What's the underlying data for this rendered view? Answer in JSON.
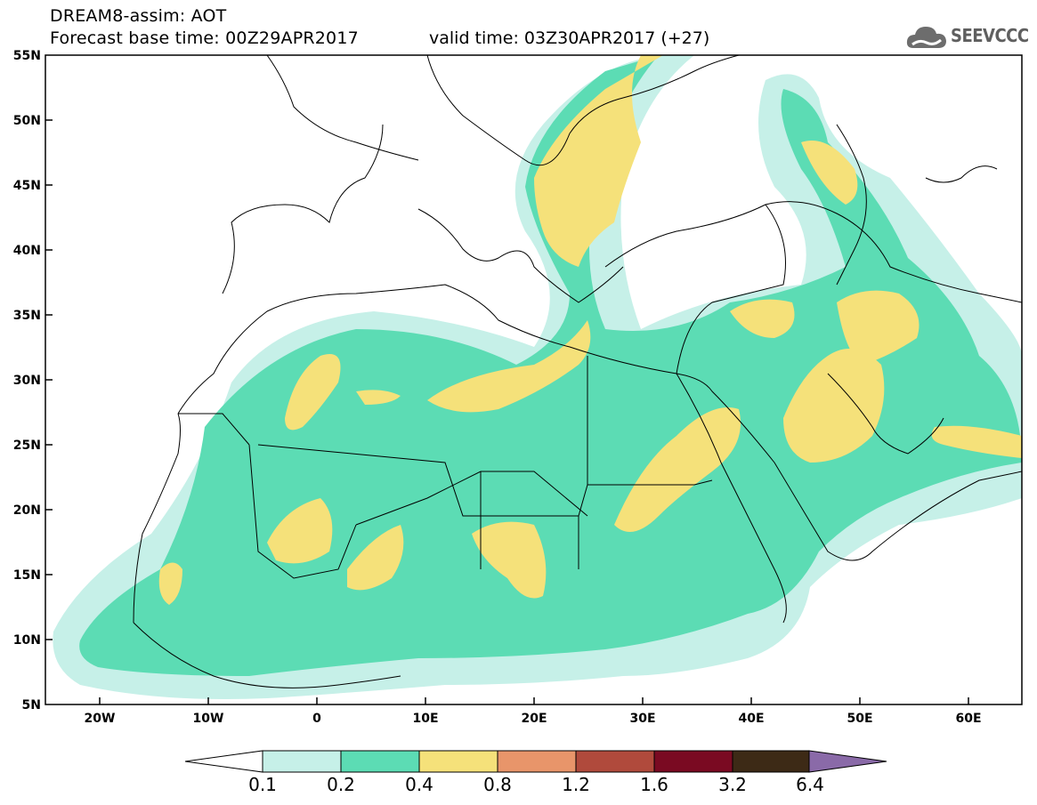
{
  "header": {
    "title": "DREAM8-assim: AOT",
    "base_time": "Forecast base time: 00Z29APR2017",
    "valid_time": "valid time: 03Z30APR2017 (+27)",
    "logo_text": "SEEVCCC",
    "logo_icon": "cloud-icon"
  },
  "map": {
    "variable": "AOT",
    "lat_range": [
      5,
      55
    ],
    "lon_range": [
      -25,
      65
    ],
    "lat_labels": [
      "55N",
      "50N",
      "45N",
      "40N",
      "35N",
      "30N",
      "25N",
      "20N",
      "15N",
      "10N",
      "5N"
    ],
    "lon_labels": [
      "20W",
      "10W",
      "0",
      "10E",
      "20E",
      "30E",
      "40E",
      "50E",
      "60E"
    ]
  },
  "colorbar": {
    "labels": [
      "0.1",
      "0.2",
      "0.4",
      "0.8",
      "1.2",
      "1.6",
      "3.2",
      "6.4"
    ],
    "colors": [
      "#ffffff",
      "#c6f0e8",
      "#5cdcb4",
      "#f5e17a",
      "#e8956a",
      "#b04a3c",
      "#7a0a22",
      "#3d2a16",
      "#8a6aa8"
    ]
  }
}
